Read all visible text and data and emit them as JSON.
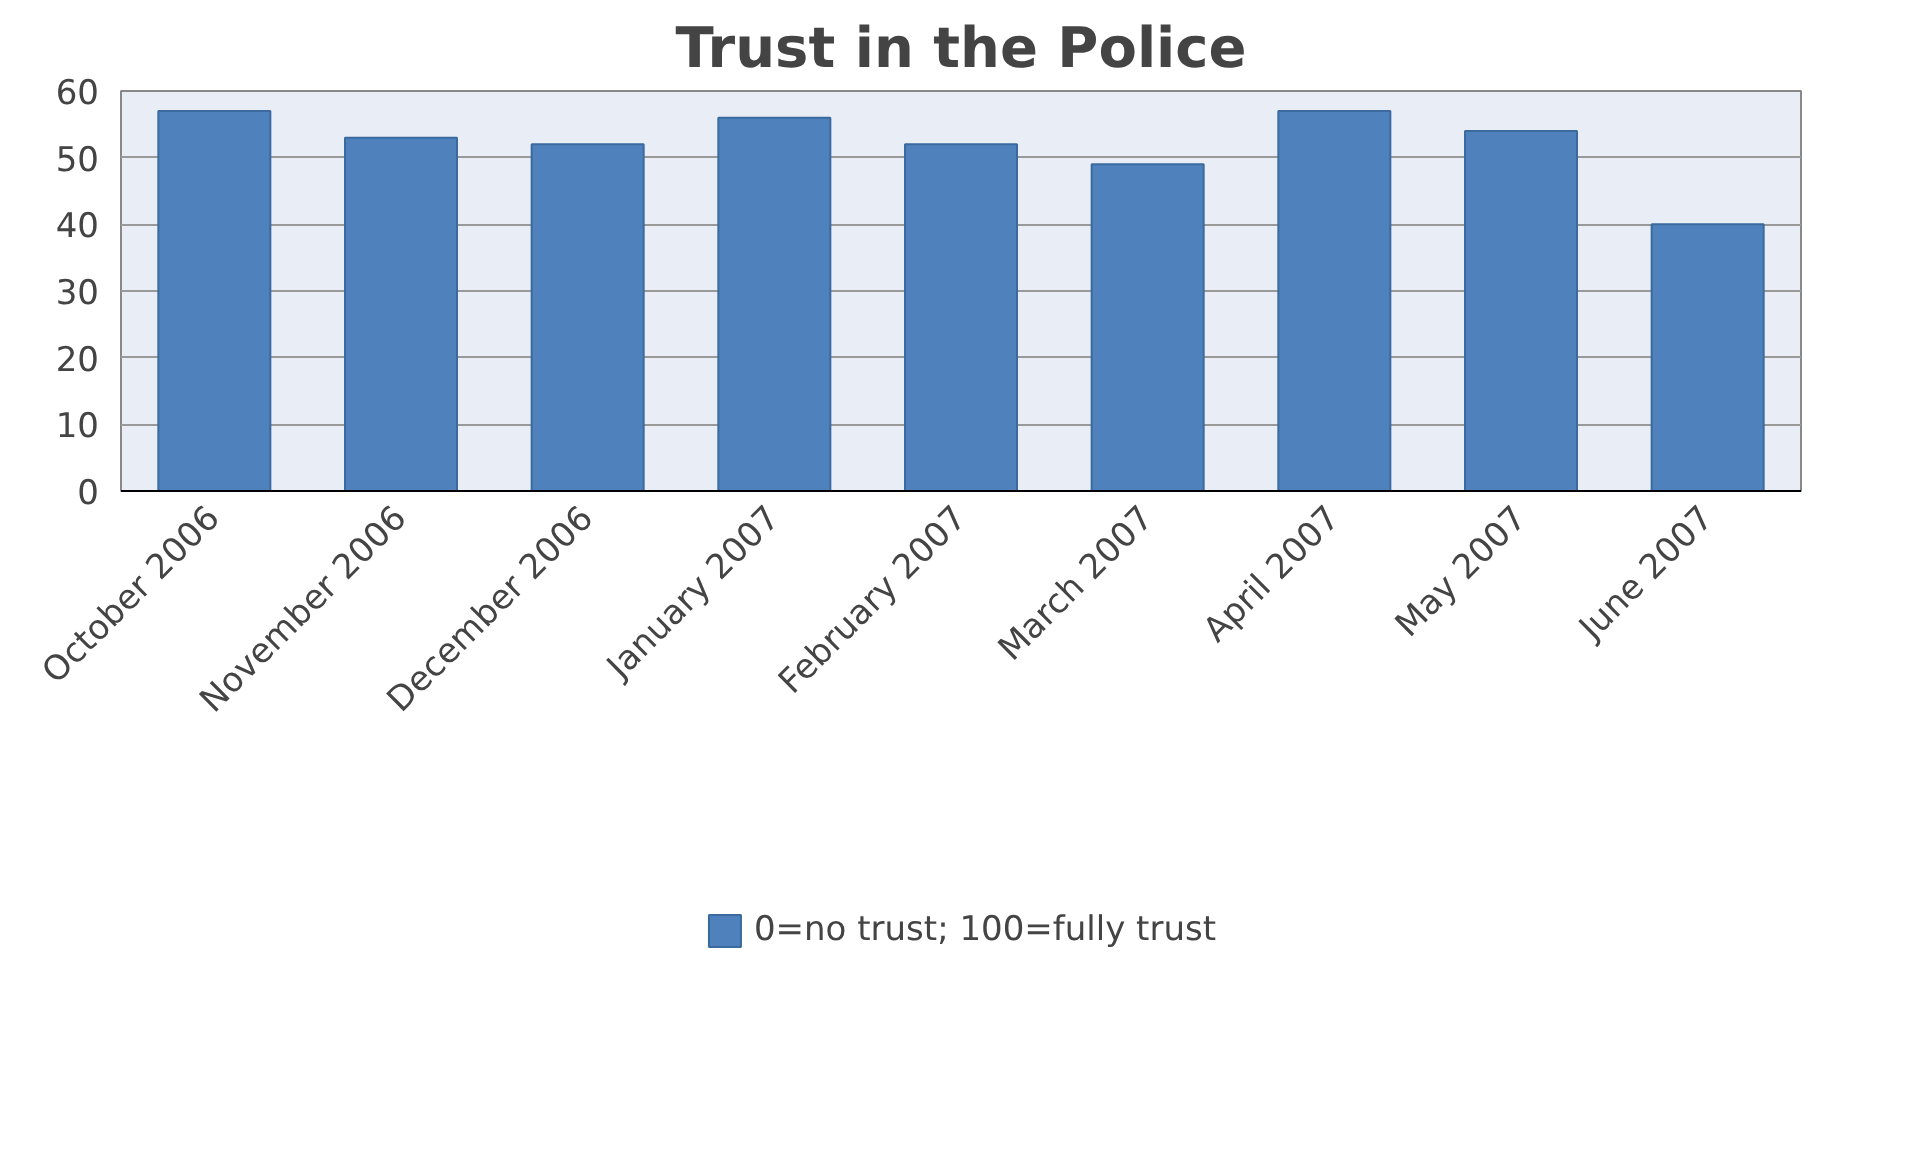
{
  "chart_data": {
    "type": "bar",
    "title": "Trust in the Police",
    "categories": [
      "October 2006",
      "November 2006",
      "December 2006",
      "January 2007",
      "February 2007",
      "March 2007",
      "April 2007",
      "May 2007",
      "June 2007"
    ],
    "series": [
      {
        "name": "0=no trust; 100=fully trust",
        "color": "#4f81bd",
        "values": [
          57,
          53,
          52,
          56,
          52,
          49,
          57,
          54,
          40
        ]
      }
    ],
    "ylim": [
      0,
      60
    ],
    "yticks": [
      0,
      10,
      20,
      30,
      40,
      50,
      60
    ],
    "grid": "y",
    "legend": "bottom"
  }
}
